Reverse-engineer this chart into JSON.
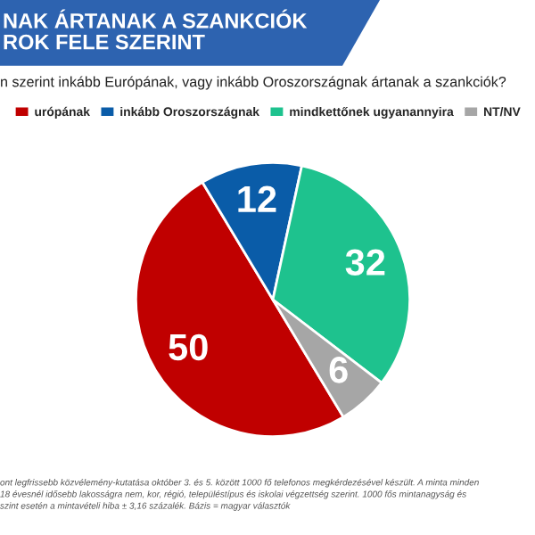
{
  "chart_data": {
    "type": "pie",
    "title": "NAK ÁRTANAK A SZANKCIÓK\nROK FELE SZERINT",
    "subtitle": "n szerint inkább Európának, vagy inkább Oroszországnak ártanak a szankciók?",
    "categories": [
      "urópának",
      "inkább Oroszországnak",
      "mindkettőnek ugyanannyira",
      "NT/NV"
    ],
    "values": [
      50,
      12,
      32,
      6
    ],
    "colors": [
      "#c00000",
      "#0a5ca8",
      "#1ec28e",
      "#a6a6a6"
    ],
    "data_labels": true,
    "legend": "top",
    "annotations": [
      "ont legfrissebb közvélemény-kutatása október 3. és 5. között 1000 fő telefonos megkérdezésével készült. A minta minden\n18 évesnél idősebb lakosságra nem, kor, régió, településtípus és iskolai végzettség szerint. 1000 fős mintanagyság és\nszint esetén a mintavételi hiba ± 3,16 százalék. Bázis = magyar választók"
    ]
  }
}
